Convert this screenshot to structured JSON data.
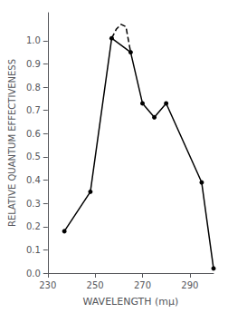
{
  "chart_data": {
    "type": "line",
    "xlabel": "WAVELENGTH (mμ)",
    "ylabel": "RELATIVE QUANTUM EFFECTIVENESS",
    "series": [
      {
        "x": [
          237,
          248,
          257,
          265,
          270,
          275,
          280,
          295,
          300
        ],
        "values": [
          0.18,
          0.35,
          1.01,
          0.95,
          0.73,
          0.67,
          0.73,
          0.39,
          0.02
        ],
        "color": "black",
        "marker": "circle",
        "line_style": "solid"
      },
      {
        "x": [
          257,
          259,
          261,
          263,
          265
        ],
        "values": [
          1.01,
          1.05,
          1.07,
          1.06,
          0.95
        ],
        "color": "black",
        "marker": "none",
        "line_style": "dashed"
      }
    ],
    "xlim": [
      230,
      300
    ],
    "ylim": [
      0,
      1.12
    ],
    "xticks": [
      230,
      250,
      270,
      290
    ],
    "yticks": [
      {
        "value": 0,
        "label": "0.0"
      },
      0.1,
      0.2,
      0.3,
      0.4,
      0.5,
      0.6,
      0.7,
      0.8,
      0.9,
      {
        "value": 1.0,
        "label": "1.0"
      }
    ],
    "grid": false
  }
}
